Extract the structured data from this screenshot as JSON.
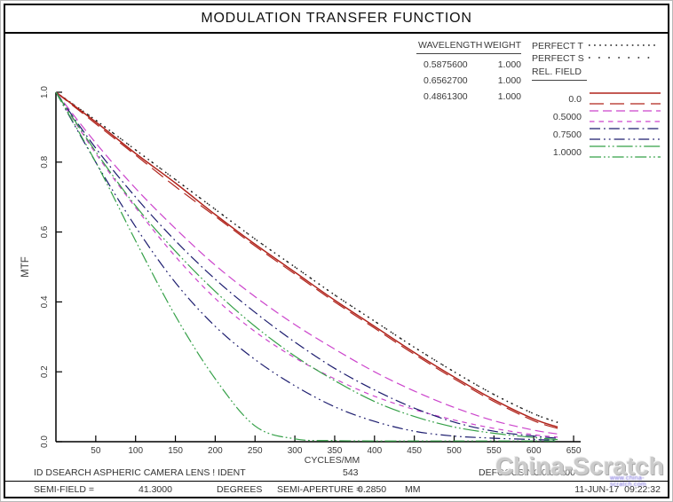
{
  "title": "MODULATION TRANSFER FUNCTION",
  "wavelength_table": {
    "headers": [
      "WAVELENGTH",
      "WEIGHT"
    ],
    "rows": [
      [
        "0.5875600",
        "1.000"
      ],
      [
        "0.6562700",
        "1.000"
      ],
      [
        "0.4861300",
        "1.000"
      ]
    ]
  },
  "footer": {
    "id_line": "ID DSEARCH ASPHERIC CAMERA LENS ! IDENT",
    "id_number": "543",
    "defocus_label": "DEFOCUSING",
    "defocus_value": "0.00000",
    "semi_field_label": "SEMI-FIELD =",
    "semi_field_value": "41.3000",
    "semi_field_units": "DEGREES",
    "semi_aperture_label": "SEMI-APERTURE =",
    "semi_aperture_value": "0.2850",
    "semi_aperture_units": "MM",
    "datetime": "11-JUN-17  09:22:32"
  },
  "watermark": {
    "text": "China-Scratch",
    "subtext": "www.china-scratch.com",
    "color": "#cbcbcb",
    "subtext_color": "#6b5fd6"
  },
  "chart_data": {
    "type": "line",
    "title": "MODULATION TRANSFER FUNCTION",
    "xlabel": "CYCLES/MM",
    "ylabel": "MTF",
    "xlim": [
      0,
      660
    ],
    "ylim": [
      0,
      1.0
    ],
    "grid": false,
    "legend_position": "right",
    "x_ticks": [
      50,
      100,
      150,
      200,
      250,
      300,
      350,
      400,
      450,
      500,
      550,
      600,
      650
    ],
    "y_ticks": [
      0.0,
      0.2,
      0.4,
      0.6,
      0.8,
      1.0
    ],
    "x": [
      0,
      50,
      100,
      150,
      200,
      250,
      300,
      350,
      400,
      450,
      500,
      550,
      600,
      630
    ],
    "series": [
      {
        "name": "PERFECT T",
        "color": "#1a1a1a",
        "dash": "1.6 4.5",
        "width": 1.4,
        "values": [
          1.0,
          0.92,
          0.835,
          0.75,
          0.665,
          0.58,
          0.5,
          0.42,
          0.345,
          0.27,
          0.2,
          0.135,
          0.08,
          0.055
        ]
      },
      {
        "name": "PERFECT S",
        "color": "#1a1a1a",
        "dash": "1.6 9.5",
        "width": 1.4,
        "values": [
          1.0,
          0.92,
          0.835,
          0.75,
          0.665,
          0.58,
          0.5,
          0.42,
          0.345,
          0.27,
          0.2,
          0.135,
          0.08,
          0.055
        ]
      },
      {
        "name": "0.0 T",
        "color": "#b0241c",
        "dash": "",
        "width": 1.5,
        "values": [
          1.0,
          0.915,
          0.825,
          0.74,
          0.65,
          0.565,
          0.485,
          0.405,
          0.33,
          0.255,
          0.185,
          0.12,
          0.065,
          0.042
        ]
      },
      {
        "name": "0.0 S",
        "color": "#b0241c",
        "dash": "16 7",
        "width": 1.2,
        "values": [
          1.0,
          0.91,
          0.82,
          0.73,
          0.645,
          0.56,
          0.48,
          0.4,
          0.325,
          0.25,
          0.18,
          0.115,
          0.06,
          0.038
        ]
      },
      {
        "name": "0.5000 T",
        "color": "#cc44cc",
        "dash": "10 5",
        "width": 1.2,
        "values": [
          1.0,
          0.855,
          0.725,
          0.61,
          0.505,
          0.415,
          0.335,
          0.265,
          0.2,
          0.145,
          0.098,
          0.06,
          0.033,
          0.022
        ]
      },
      {
        "name": "0.5000 S",
        "color": "#cc44cc",
        "dash": "5.5 5",
        "width": 1.2,
        "values": [
          1.0,
          0.825,
          0.67,
          0.53,
          0.41,
          0.315,
          0.24,
          0.18,
          0.13,
          0.092,
          0.062,
          0.038,
          0.02,
          0.013
        ]
      },
      {
        "name": "0.7500 T",
        "color": "#1c1c6e",
        "dash": "12 4 1.8 4",
        "width": 1.2,
        "values": [
          1.0,
          0.84,
          0.7,
          0.575,
          0.465,
          0.37,
          0.285,
          0.21,
          0.148,
          0.096,
          0.056,
          0.03,
          0.016,
          0.01
        ]
      },
      {
        "name": "0.7500 S",
        "color": "#1c1c6e",
        "dash": "12 4 1.8 4 1.8 4",
        "width": 1.2,
        "values": [
          1.0,
          0.8,
          0.615,
          0.455,
          0.33,
          0.235,
          0.16,
          0.1,
          0.058,
          0.03,
          0.016,
          0.01,
          0.006,
          0.004
        ]
      },
      {
        "name": "1.0000 T",
        "color": "#35a048",
        "dash": "18 3 1.8 3 1.8 3",
        "width": 1.2,
        "values": [
          1.0,
          0.83,
          0.675,
          0.545,
          0.43,
          0.33,
          0.245,
          0.175,
          0.115,
          0.072,
          0.042,
          0.024,
          0.012,
          0.006
        ]
      },
      {
        "name": "1.0000 S",
        "color": "#35a048",
        "dash": "13 3 1.8 3 1.8 3",
        "width": 1.2,
        "values": [
          1.0,
          0.8,
          0.575,
          0.36,
          0.18,
          0.045,
          0.008,
          0.003,
          0.002,
          0.002,
          0.002,
          0.002,
          0.002,
          0.002
        ]
      }
    ],
    "legend": {
      "perfect_t_label": "PERFECT T",
      "perfect_s_label": "PERFECT S",
      "rel_field_label": "REL. FIELD",
      "fields": [
        {
          "label": "0.0"
        },
        {
          "label": "0.5000"
        },
        {
          "label": "0.7500"
        },
        {
          "label": "1.0000"
        }
      ]
    }
  }
}
